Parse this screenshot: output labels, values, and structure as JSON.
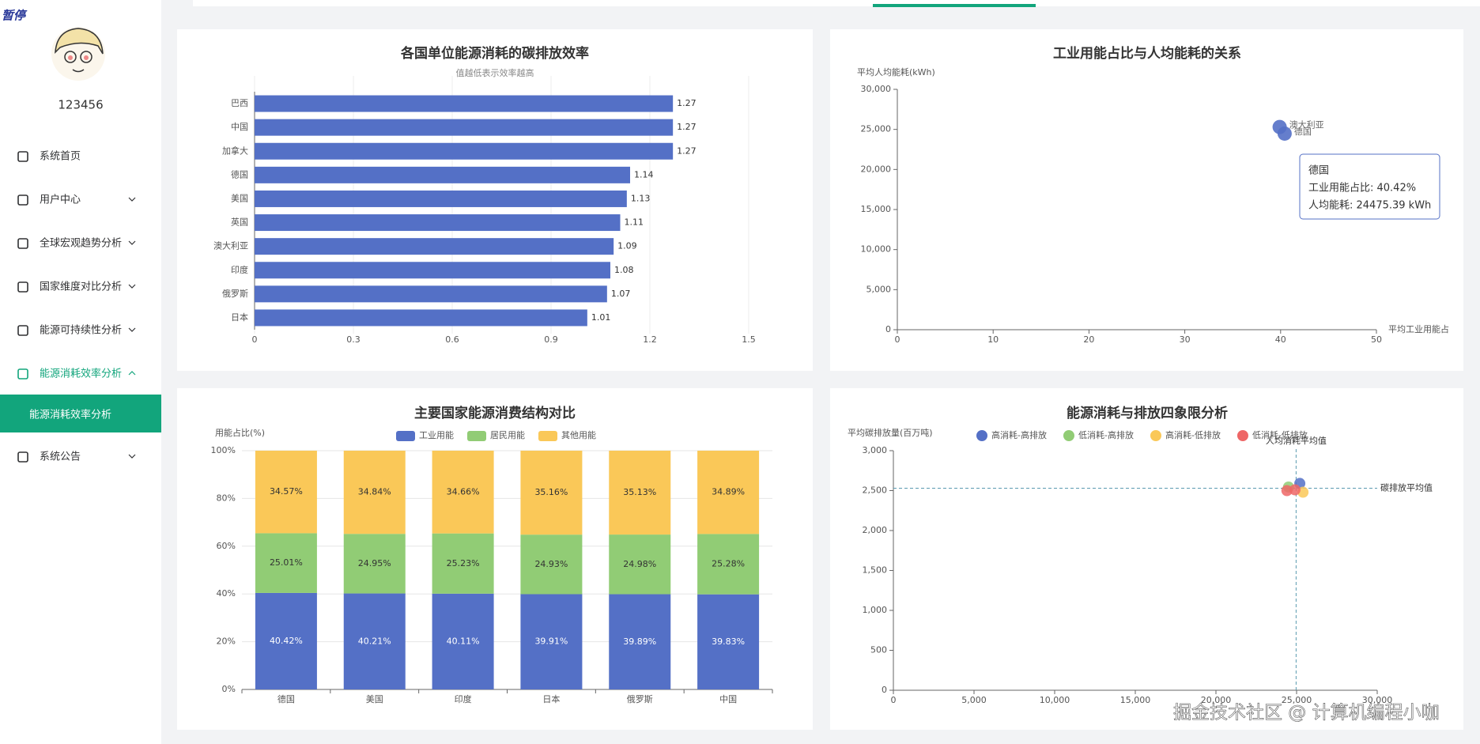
{
  "badge": "暂停",
  "sidebar": {
    "user": "123456",
    "menu": [
      "系统首页",
      "用户中心",
      "全球宏观趋势分析",
      "国家维度对比分析",
      "能源可持续性分析",
      "能源消耗效率分析",
      "系统公告"
    ],
    "submenu": "能源消耗效率分析"
  },
  "watermark": "掘金技术社区 @ 计算机编程小咖",
  "chart_data": [
    {
      "type": "hbar",
      "title": "各国单位能源消耗的碳排放效率",
      "subtitle": "值越低表示效率越高",
      "categories": [
        "巴西",
        "中国",
        "加拿大",
        "德国",
        "美国",
        "英国",
        "澳大利亚",
        "印度",
        "俄罗斯",
        "日本"
      ],
      "values": [
        1.27,
        1.27,
        1.27,
        1.14,
        1.13,
        1.11,
        1.09,
        1.08,
        1.07,
        1.01
      ],
      "color": "#5470c6",
      "xlim": [
        0,
        1.5
      ],
      "xticks": [
        0,
        0.3,
        0.6,
        0.9,
        1.2,
        1.5
      ],
      "grid": true
    },
    {
      "type": "scatter",
      "title": "工业用能占比与人均能耗的关系",
      "ylabel": "平均人均能耗(kWh)",
      "xlabel": "平均工业用能占",
      "x": [
        39.9,
        40.42
      ],
      "values": [
        25300,
        24475.39
      ],
      "labels": [
        "澳大利亚",
        "德国"
      ],
      "color": "#5470c6",
      "xlim": [
        0,
        50
      ],
      "xticks": [
        0,
        10,
        20,
        30,
        40,
        50
      ],
      "ylim": [
        0,
        30000
      ],
      "yticks": [
        0,
        {
          "value": 5000,
          "label": "5,000"
        },
        {
          "value": 10000,
          "label": "10,000"
        },
        {
          "value": 15000,
          "label": "15,000"
        },
        {
          "value": 20000,
          "label": "20,000"
        },
        {
          "value": 25000,
          "label": "25,000"
        },
        {
          "value": 30000,
          "label": "30,000"
        }
      ],
      "tooltip": [
        "德国",
        "工业用能占比: 40.42%",
        "人均能耗: 24475.39 kWh"
      ]
    },
    {
      "type": "stacked",
      "title": "主要国家能源消费结构对比",
      "ylabel": "用能占比(%)",
      "categories": [
        "德国",
        "美国",
        "印度",
        "日本",
        "俄罗斯",
        "中国"
      ],
      "series": [
        {
          "name": "工业用能",
          "color": "#5470c6",
          "values": [
            40.42,
            40.21,
            40.11,
            39.91,
            39.89,
            39.83
          ],
          "value_labels": [
            "40.42%",
            "40.21%",
            "40.11%",
            "39.91%",
            "39.89%",
            "39.83%"
          ]
        },
        {
          "name": "居民用能",
          "color": "#91cc75",
          "values": [
            25.01,
            24.95,
            25.23,
            24.93,
            24.98,
            25.28
          ],
          "value_labels": [
            "25.01%",
            "24.95%",
            "25.23%",
            "24.93%",
            "24.98%",
            "25.28%"
          ]
        },
        {
          "name": "其他用能",
          "color": "#fac858",
          "values": [
            34.57,
            34.84,
            34.66,
            35.16,
            35.13,
            34.89
          ],
          "value_labels": [
            "34.57%",
            "34.84%",
            "34.66%",
            "35.16%",
            "35.13%",
            "34.89%"
          ]
        }
      ],
      "ylim": [
        0,
        100
      ],
      "yticks": [
        {
          "value": 0,
          "label": "0%"
        },
        {
          "value": 20,
          "label": "20%"
        },
        {
          "value": 40,
          "label": "40%"
        },
        {
          "value": 60,
          "label": "60%"
        },
        {
          "value": 80,
          "label": "80%"
        },
        {
          "value": 100,
          "label": "100%"
        }
      ],
      "grid": true
    },
    {
      "type": "quadrant",
      "title": "能源消耗与排放四象限分析",
      "ylabel": "平均碳排放量(百万吨)",
      "series": [
        {
          "name": "高消耗-高排放",
          "color": "#5470c6",
          "x": [
            25200
          ],
          "values": [
            2590
          ]
        },
        {
          "name": "低消耗-高排放",
          "color": "#91cc75",
          "x": [
            24500
          ],
          "values": [
            2545
          ]
        },
        {
          "name": "高消耗-低排放",
          "color": "#fac858",
          "x": [
            25400
          ],
          "values": [
            2480
          ]
        },
        {
          "name": "低消耗-低排放",
          "color": "#ee6666",
          "x": [
            24400,
            24900
          ],
          "values": [
            2500,
            2510
          ]
        }
      ],
      "mark_lines": [
        {
          "name": "人均消耗平均值",
          "axis": "x",
          "value": 24970
        },
        {
          "name": "碳排放平均值",
          "axis": "y",
          "value": 2530
        }
      ],
      "xlim": [
        0,
        30000
      ],
      "xticks": [
        0,
        {
          "value": 5000,
          "label": "5,000"
        },
        {
          "value": 10000,
          "label": "10,000"
        },
        {
          "value": 15000,
          "label": "15,000"
        },
        {
          "value": 20000,
          "label": "20,000"
        },
        {
          "value": 25000,
          "label": "25,000"
        },
        {
          "value": 30000,
          "label": "30,000"
        }
      ],
      "ylim": [
        0,
        3000
      ],
      "yticks": [
        0,
        500,
        {
          "value": 1000,
          "label": "1,000"
        },
        {
          "value": 1500,
          "label": "1,500"
        },
        {
          "value": 2000,
          "label": "2,000"
        },
        {
          "value": 2500,
          "label": "2,500"
        },
        {
          "value": 3000,
          "label": "3,000"
        }
      ]
    }
  ]
}
